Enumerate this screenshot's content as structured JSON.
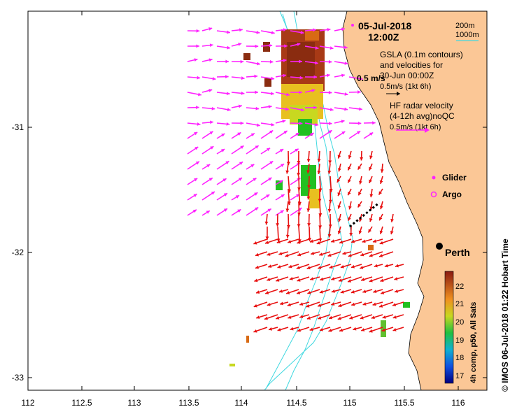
{
  "header": {
    "date": "05-Jul-2018",
    "time": "12:00Z"
  },
  "depth_legend": {
    "shallow": "200m",
    "deep": "1000m",
    "contour_color": "#40d8e0"
  },
  "info": {
    "gsla_line1": "GSLA (0.1m contours)",
    "gsla_line2": "and velocities for",
    "gsla_line3": "30-Jun 00:00Z",
    "gsla_scale": "0.5m/s (1kt 6h)",
    "inline_scale": "0.5 m/s",
    "hf_line1": "HF radar velocity",
    "hf_line2": "(4-12h avg)noQC",
    "hf_scale": "0.5m/s (1kt 6h)"
  },
  "markers": {
    "glider": "Glider",
    "argo": "Argo",
    "city": "Perth"
  },
  "axes": {
    "x_ticks": [
      "112",
      "112.5",
      "113",
      "113.5",
      "114",
      "114.5",
      "115",
      "115.5",
      "116"
    ],
    "y_ticks": [
      "-31",
      "-32",
      "-33"
    ]
  },
  "colorbar": {
    "label": "4h comp, p50, All Sats",
    "ticks": [
      "22",
      "21",
      "20",
      "19",
      "18",
      "17"
    ]
  },
  "credit": "© IMOS 06-Jul-2018 01:22 Hobart Time",
  "colors": {
    "land": "#fbc796",
    "hf_vector": "#ff22ff",
    "gsla_vector": "#e81010",
    "contour": "#40d8e0"
  }
}
